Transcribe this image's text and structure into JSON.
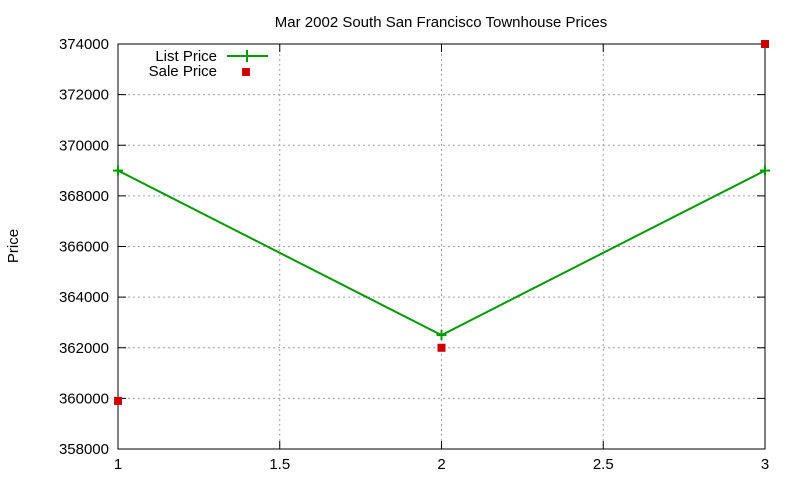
{
  "chart_data": {
    "type": "line",
    "title": "Mar 2002 South San Francisco Townhouse Prices",
    "xlabel": "",
    "ylabel": "Price",
    "xlim": [
      1,
      3
    ],
    "ylim": [
      358000,
      374000
    ],
    "x_ticks": [
      1,
      1.5,
      2,
      2.5,
      3
    ],
    "x_tick_labels": [
      "1",
      "1.5",
      "2",
      "2.5",
      "3"
    ],
    "y_ticks": [
      358000,
      360000,
      362000,
      364000,
      366000,
      368000,
      370000,
      372000,
      374000
    ],
    "y_tick_labels": [
      "358000",
      "360000",
      "362000",
      "364000",
      "366000",
      "368000",
      "370000",
      "372000",
      "374000"
    ],
    "grid": true,
    "legend_position": "top-left",
    "series": [
      {
        "name": "List Price",
        "style": "line-with-plus-markers",
        "color": "#009900",
        "x": [
          1,
          2,
          3
        ],
        "y": [
          369000,
          362500,
          369000
        ]
      },
      {
        "name": "Sale Price",
        "style": "square-markers",
        "color": "#cc0000",
        "x": [
          1,
          2,
          3
        ],
        "y": [
          359900,
          362000,
          374000
        ]
      }
    ]
  }
}
